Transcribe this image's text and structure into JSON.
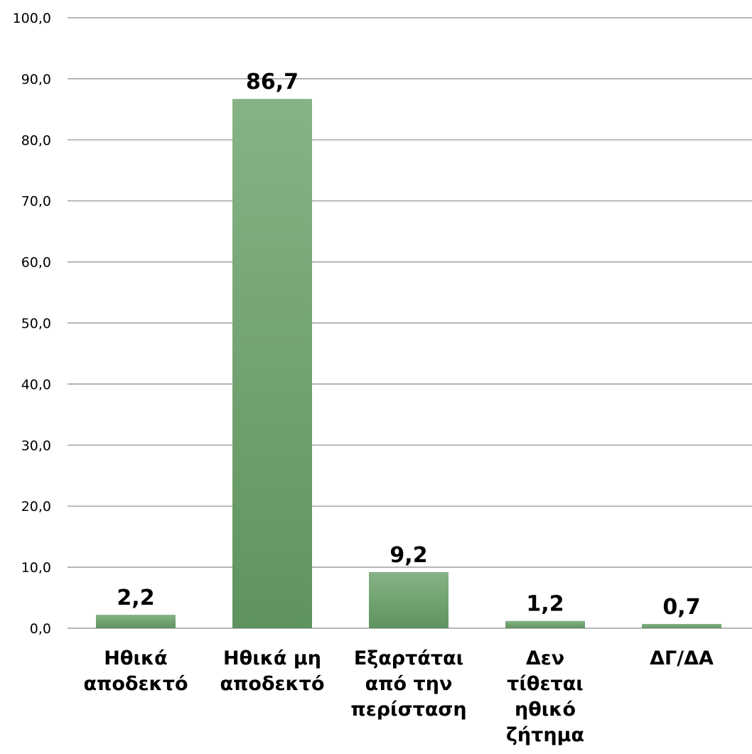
{
  "chart_data": {
    "type": "bar",
    "categories": [
      [
        "Ηθικά",
        "αποδεκτό"
      ],
      [
        "Ηθικά μη",
        "αποδεκτό"
      ],
      [
        "Εξαρτάται",
        "από την",
        "περίσταση"
      ],
      [
        "Δεν",
        "τίθεται",
        "ηθικό",
        "ζήτημα"
      ],
      [
        "ΔΓ/ΔΑ"
      ]
    ],
    "values": [
      2.2,
      86.7,
      9.2,
      1.2,
      0.7
    ],
    "value_labels": [
      "2,2",
      "86,7",
      "9,2",
      "1,2",
      "0,7"
    ],
    "ylim": [
      0,
      100
    ],
    "yticks": [
      "0,0",
      "10,0",
      "20,0",
      "30,0",
      "40,0",
      "50,0",
      "60,0",
      "70,0",
      "80,0",
      "90,0",
      "100,0"
    ],
    "grid": true,
    "bar_color": "#6a9f6a",
    "bar_color_light": "#86b386",
    "bar_color_dark": "#5e935e",
    "grid_color": "#8c8c8c",
    "title": "",
    "xlabel": "",
    "ylabel": ""
  }
}
